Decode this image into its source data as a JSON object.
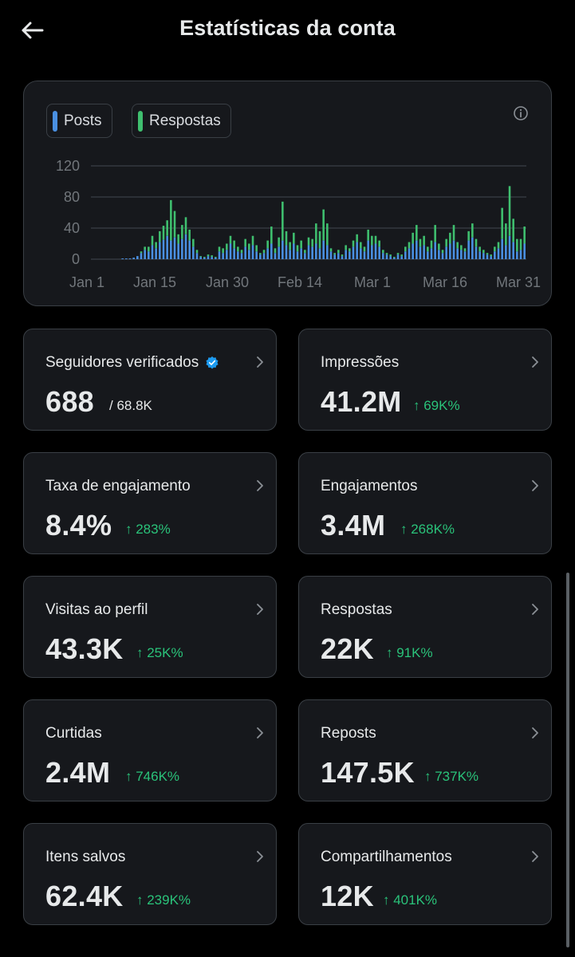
{
  "header": {
    "title": "Estatísticas da conta",
    "back_icon": "arrow-left-icon"
  },
  "chart": {
    "legend": [
      {
        "label": "Posts",
        "color": "#4a90e2"
      },
      {
        "label": "Respostas",
        "color": "#3fbf6f"
      }
    ],
    "info_icon": "info-icon"
  },
  "chart_data": {
    "type": "bar",
    "stacked": true,
    "ylim": [
      0,
      120
    ],
    "yticks": [
      "0",
      "40",
      "80",
      "120"
    ],
    "xticks": [
      "Jan 1",
      "Jan 15",
      "Jan 30",
      "Feb 14",
      "Mar 1",
      "Mar 16",
      "Mar 31"
    ],
    "grid": true,
    "series": [
      {
        "name": "Posts",
        "color": "#4a90e2",
        "values": [
          0,
          0,
          0,
          0,
          0,
          0,
          0,
          0,
          1,
          1,
          1,
          2,
          4,
          8,
          12,
          10,
          18,
          14,
          22,
          25,
          30,
          24,
          28,
          20,
          26,
          32,
          24,
          16,
          8,
          3,
          2,
          4,
          3,
          2,
          10,
          8,
          12,
          20,
          14,
          10,
          8,
          16,
          12,
          18,
          10,
          6,
          8,
          14,
          20,
          8,
          16,
          24,
          18,
          12,
          20,
          10,
          14,
          8,
          18,
          16,
          20,
          14,
          24,
          18,
          10,
          6,
          8,
          4,
          12,
          10,
          16,
          22,
          14,
          10,
          24,
          18,
          20,
          16,
          8,
          6,
          4,
          2,
          6,
          4,
          10,
          14,
          20,
          24,
          16,
          18,
          10,
          14,
          22,
          12,
          8,
          16,
          20,
          24,
          14,
          12,
          10,
          24,
          28,
          16,
          10,
          8,
          6,
          4,
          10,
          14,
          26,
          18,
          30,
          22,
          10,
          12,
          20
        ]
      },
      {
        "name": "Respostas",
        "color": "#3fbf6f",
        "values": [
          0,
          0,
          0,
          0,
          0,
          0,
          0,
          0,
          0,
          0,
          0,
          0,
          0,
          2,
          4,
          6,
          12,
          8,
          14,
          18,
          20,
          52,
          34,
          12,
          18,
          22,
          14,
          10,
          4,
          1,
          1,
          2,
          2,
          1,
          6,
          6,
          8,
          10,
          10,
          6,
          4,
          10,
          8,
          12,
          8,
          2,
          4,
          10,
          22,
          6,
          12,
          50,
          18,
          10,
          14,
          8,
          10,
          4,
          10,
          10,
          26,
          22,
          40,
          28,
          4,
          2,
          4,
          2,
          6,
          4,
          8,
          10,
          8,
          6,
          14,
          12,
          10,
          8,
          4,
          2,
          2,
          1,
          2,
          2,
          6,
          8,
          14,
          20,
          10,
          12,
          6,
          10,
          22,
          8,
          4,
          10,
          14,
          20,
          8,
          6,
          4,
          12,
          18,
          10,
          6,
          4,
          2,
          2,
          6,
          8,
          40,
          28,
          64,
          30,
          16,
          14,
          22
        ]
      }
    ]
  },
  "stats": [
    {
      "label": "Seguidores verificados",
      "value": "688",
      "sub": "/ 68.8K",
      "verified": true
    },
    {
      "label": "Impressões",
      "value": "41.2M",
      "delta": "↑ 69K%"
    },
    {
      "label": "Taxa de engajamento",
      "value": "8.4%",
      "delta": "↑ 283%"
    },
    {
      "label": "Engajamentos",
      "value": "3.4M",
      "delta": "↑ 268K%"
    },
    {
      "label": "Visitas ao perfil",
      "value": "43.3K",
      "delta": "↑ 25K%"
    },
    {
      "label": "Respostas",
      "value": "22K",
      "delta": "↑ 91K%"
    },
    {
      "label": "Curtidas",
      "value": "2.4M",
      "delta": "↑ 746K%"
    },
    {
      "label": "Reposts",
      "value": "147.5K",
      "delta": "↑ 737K%"
    },
    {
      "label": "Itens salvos",
      "value": "62.4K",
      "delta": "↑ 239K%"
    },
    {
      "label": "Compartilhamentos",
      "value": "12K",
      "delta": "↑ 401K%"
    }
  ]
}
